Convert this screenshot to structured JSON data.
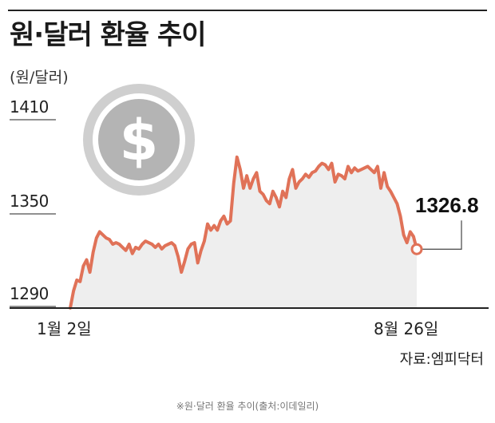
{
  "header": {
    "title": "원·달러 환율 추이",
    "unit": "(원/달러)"
  },
  "source": "자료:엠피닥터",
  "caption": "※원·달러 환율 추이(출처:이데일리)",
  "icon": "dollar-coin-icon",
  "colors": {
    "line": "#e07258",
    "area": "#eeeeee",
    "marker_fill": "#ffffff"
  },
  "chart_data": {
    "type": "line",
    "title": "원·달러 환율 추이",
    "ylabel": "(원/달러)",
    "xlabel": "",
    "ylim": [
      1290,
      1410
    ],
    "yticks": [
      1290,
      1350,
      1410
    ],
    "xtick_labels": [
      "1월 2일",
      "8월 26일"
    ],
    "grid": false,
    "last_value_label": "1326.8",
    "series": [
      {
        "values": [
          1289,
          1300,
          1307,
          1306,
          1316,
          1320,
          1312,
          1325,
          1334,
          1338,
          1336,
          1334,
          1333,
          1330,
          1331,
          1330,
          1328,
          1326,
          1330,
          1324,
          1328,
          1327,
          1330,
          1332,
          1331,
          1330,
          1328,
          1330,
          1327,
          1329,
          1330,
          1331,
          1329,
          1322,
          1312,
          1319,
          1327,
          1330,
          1331,
          1318,
          1326,
          1332,
          1343,
          1339,
          1342,
          1339,
          1345,
          1348,
          1343,
          1345,
          1369,
          1386,
          1378,
          1366,
          1374,
          1366,
          1372,
          1376,
          1364,
          1362,
          1358,
          1356,
          1364,
          1360,
          1354,
          1364,
          1360,
          1372,
          1378,
          1366,
          1370,
          1372,
          1375,
          1373,
          1376,
          1377,
          1380,
          1382,
          1381,
          1378,
          1382,
          1370,
          1375,
          1374,
          1372,
          1380,
          1376,
          1379,
          1377,
          1378,
          1379,
          1380,
          1378,
          1376,
          1380,
          1366,
          1376,
          1367,
          1364,
          1360,
          1356,
          1348,
          1336,
          1331,
          1338,
          1335,
          1326.8
        ]
      }
    ]
  }
}
